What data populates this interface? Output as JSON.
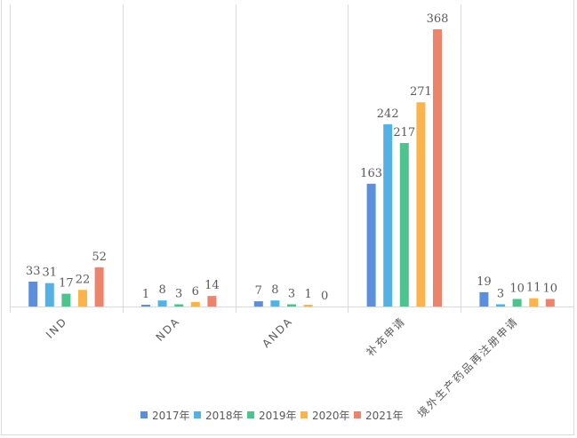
{
  "chart_data": {
    "type": "bar",
    "title": "",
    "xlabel": "",
    "ylabel": "",
    "ylim": [
      0,
      400
    ],
    "grid": "vertical category separators",
    "legend_position": "bottom",
    "categories": [
      "IND",
      "NDA",
      "ANDA",
      "补充申请",
      "境外生产药品再注册申请"
    ],
    "series": [
      {
        "name": "2017年",
        "color": "#5B8FDD",
        "values": [
          33,
          1,
          7,
          163,
          19
        ]
      },
      {
        "name": "2018年",
        "color": "#54B1E3",
        "values": [
          31,
          8,
          8,
          242,
          3
        ]
      },
      {
        "name": "2019年",
        "color": "#4DC38E",
        "values": [
          17,
          3,
          3,
          217,
          10
        ]
      },
      {
        "name": "2020年",
        "color": "#FBB44B",
        "values": [
          22,
          6,
          1,
          271,
          11
        ]
      },
      {
        "name": "2021年",
        "color": "#EE836C",
        "values": [
          52,
          14,
          0,
          368,
          10
        ]
      }
    ]
  }
}
